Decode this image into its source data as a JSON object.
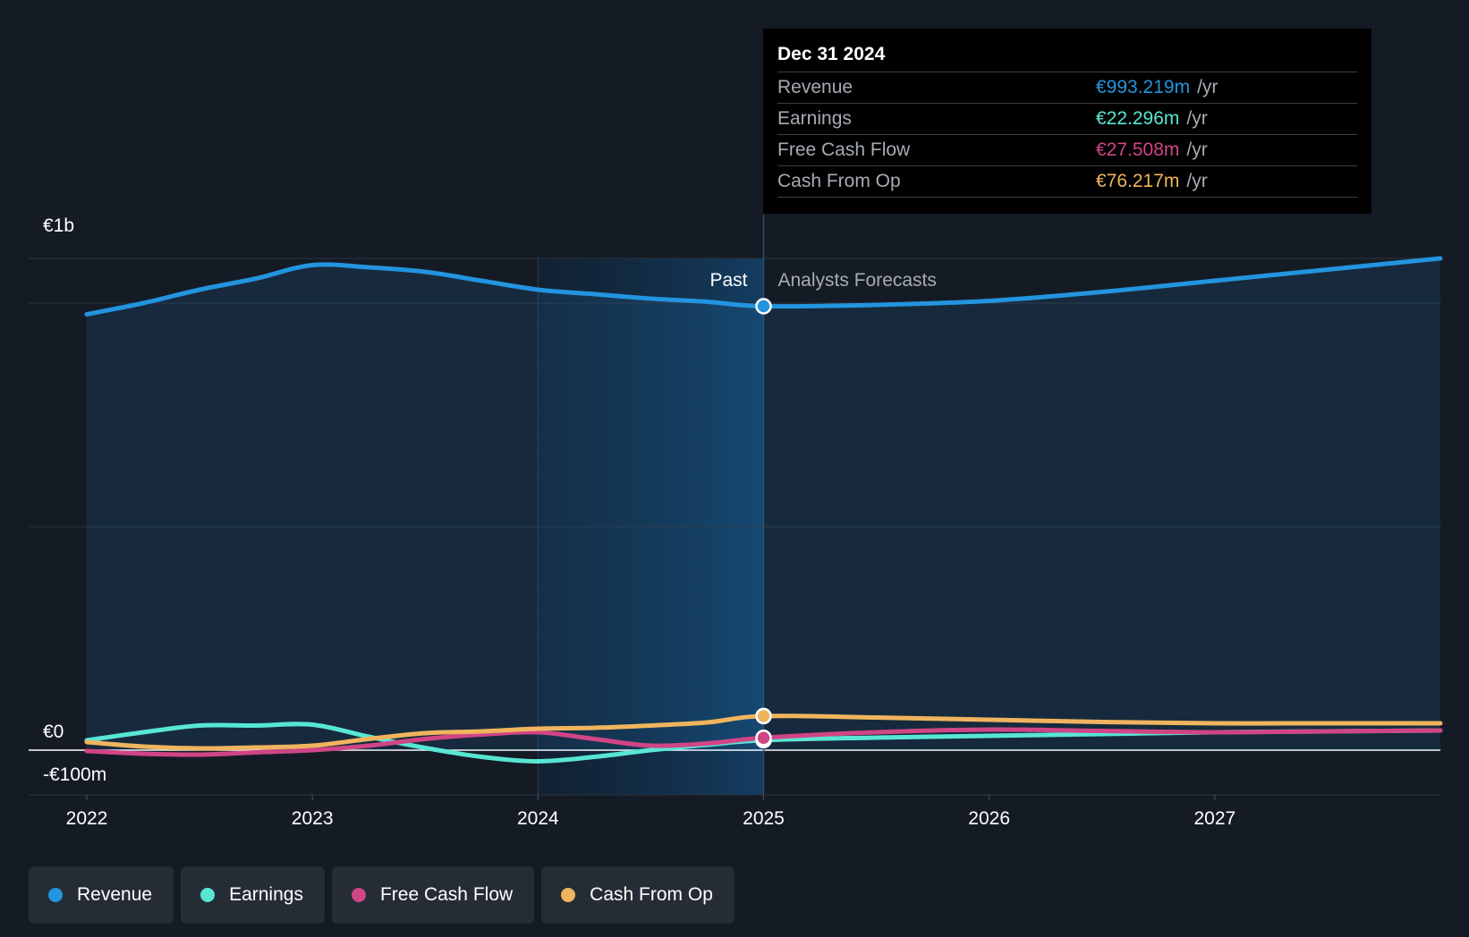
{
  "chart_data": {
    "type": "line",
    "x_unit": "year",
    "x_ticks": [
      2022,
      2023,
      2024,
      2025,
      2026,
      2027
    ],
    "x_tick_labels": [
      "2022",
      "2023",
      "2024",
      "2025",
      "2026",
      "2027"
    ],
    "y_unit": "€m",
    "ylim": [
      -100,
      1100
    ],
    "y_tick_labels": [
      {
        "value": 1000,
        "label": "€1b"
      },
      {
        "value": 0,
        "label": "€0"
      },
      {
        "value": -100,
        "label": "-€100m"
      }
    ],
    "grid": true,
    "past_highlight_range": [
      2024,
      2025
    ],
    "past_label": "Past",
    "forecast_label": "Analysts Forecasts",
    "divider_x": 2025,
    "series": [
      {
        "name": "Revenue",
        "color": "#2394df",
        "area": true,
        "points": [
          [
            2022.0,
            975
          ],
          [
            2022.25,
            1000
          ],
          [
            2022.5,
            1030
          ],
          [
            2022.75,
            1055
          ],
          [
            2023.0,
            1085
          ],
          [
            2023.25,
            1080
          ],
          [
            2023.5,
            1070
          ],
          [
            2023.75,
            1050
          ],
          [
            2024.0,
            1030
          ],
          [
            2024.25,
            1020
          ],
          [
            2024.5,
            1010
          ],
          [
            2024.75,
            1003
          ],
          [
            2025.0,
            993
          ],
          [
            2025.5,
            996
          ],
          [
            2026.0,
            1005
          ],
          [
            2026.5,
            1025
          ],
          [
            2027.0,
            1050
          ],
          [
            2027.5,
            1075
          ],
          [
            2028.0,
            1100
          ]
        ]
      },
      {
        "name": "Earnings",
        "color": "#58e6d4",
        "area": false,
        "points": [
          [
            2022.0,
            22
          ],
          [
            2022.25,
            40
          ],
          [
            2022.5,
            55
          ],
          [
            2022.75,
            55
          ],
          [
            2023.0,
            57
          ],
          [
            2023.25,
            30
          ],
          [
            2023.5,
            5
          ],
          [
            2023.75,
            -15
          ],
          [
            2024.0,
            -25
          ],
          [
            2024.25,
            -15
          ],
          [
            2024.5,
            0
          ],
          [
            2024.75,
            12
          ],
          [
            2025.0,
            22.3
          ],
          [
            2025.5,
            28
          ],
          [
            2026.0,
            32
          ],
          [
            2026.5,
            36
          ],
          [
            2027.0,
            40
          ],
          [
            2027.5,
            42
          ],
          [
            2028.0,
            44
          ]
        ]
      },
      {
        "name": "Free Cash Flow",
        "color": "#d04586",
        "area": false,
        "points": [
          [
            2022.0,
            -2
          ],
          [
            2022.25,
            -8
          ],
          [
            2022.5,
            -10
          ],
          [
            2022.75,
            -5
          ],
          [
            2023.0,
            0
          ],
          [
            2023.25,
            10
          ],
          [
            2023.5,
            25
          ],
          [
            2023.75,
            35
          ],
          [
            2024.0,
            40
          ],
          [
            2024.25,
            25
          ],
          [
            2024.5,
            10
          ],
          [
            2024.75,
            15
          ],
          [
            2025.0,
            27.5
          ],
          [
            2025.5,
            40
          ],
          [
            2026.0,
            46
          ],
          [
            2026.5,
            43
          ],
          [
            2027.0,
            40
          ],
          [
            2027.5,
            42
          ],
          [
            2028.0,
            44
          ]
        ]
      },
      {
        "name": "Cash From Op",
        "color": "#f0b45e",
        "area": false,
        "points": [
          [
            2022.0,
            18
          ],
          [
            2022.25,
            8
          ],
          [
            2022.5,
            4
          ],
          [
            2022.75,
            6
          ],
          [
            2023.0,
            10
          ],
          [
            2023.25,
            25
          ],
          [
            2023.5,
            38
          ],
          [
            2023.75,
            42
          ],
          [
            2024.0,
            48
          ],
          [
            2024.25,
            50
          ],
          [
            2024.5,
            55
          ],
          [
            2024.75,
            62
          ],
          [
            2025.0,
            76.2
          ],
          [
            2025.5,
            73
          ],
          [
            2026.0,
            68
          ],
          [
            2026.5,
            63
          ],
          [
            2027.0,
            60
          ],
          [
            2027.5,
            60
          ],
          [
            2028.0,
            60
          ]
        ]
      }
    ],
    "marker_x": 2025,
    "tooltip": {
      "date": "Dec 31 2024",
      "rows": [
        {
          "label": "Revenue",
          "value": "€993.219m",
          "unit": "/yr",
          "color": "#2394df"
        },
        {
          "label": "Earnings",
          "value": "€22.296m",
          "unit": "/yr",
          "color": "#58e6d4"
        },
        {
          "label": "Free Cash Flow",
          "value": "€27.508m",
          "unit": "/yr",
          "color": "#d04586"
        },
        {
          "label": "Cash From Op",
          "value": "€76.217m",
          "unit": "/yr",
          "color": "#f0b45e"
        }
      ]
    },
    "legend": [
      {
        "label": "Revenue",
        "color": "#2394df"
      },
      {
        "label": "Earnings",
        "color": "#58e6d4"
      },
      {
        "label": "Free Cash Flow",
        "color": "#d04586"
      },
      {
        "label": "Cash From Op",
        "color": "#f0b45e"
      }
    ]
  }
}
